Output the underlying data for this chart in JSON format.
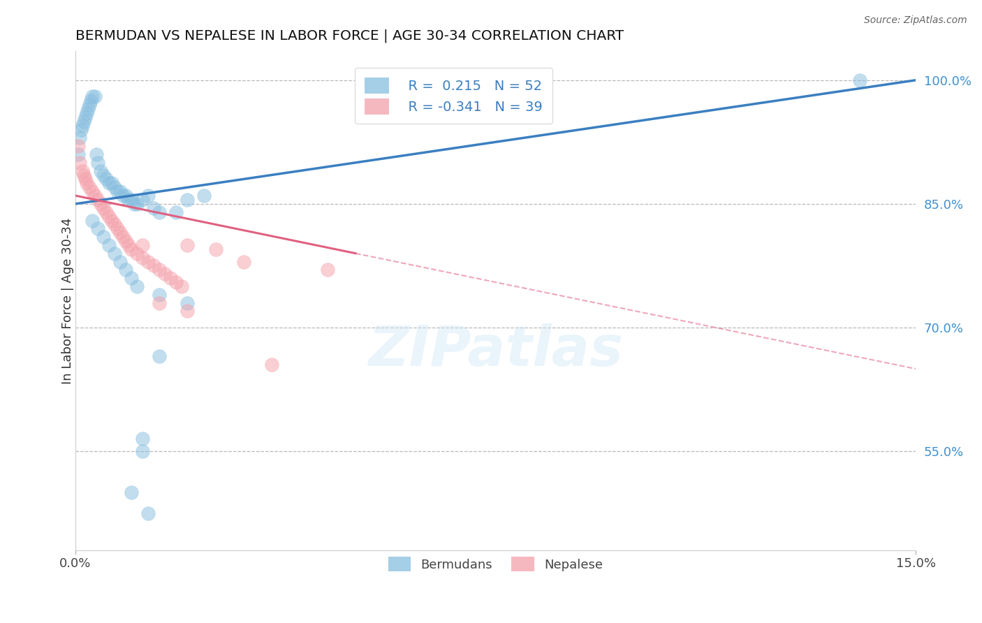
{
  "title": "BERMUDAN VS NEPALESE IN LABOR FORCE | AGE 30-34 CORRELATION CHART",
  "source": "Source: ZipAtlas.com",
  "ylabel": "In Labor Force | Age 30-34",
  "xlim": [
    0.0,
    15.0
  ],
  "ylim": [
    43.0,
    103.5
  ],
  "legend_blue_r": "R =  0.215",
  "legend_blue_n": "N = 52",
  "legend_pink_r": "R = -0.341",
  "legend_pink_n": "N = 39",
  "blue_color": "#87BEDF",
  "pink_color": "#F4A0AA",
  "trend_blue_color": "#3A7FC1",
  "trend_pink_color": "#E06080",
  "watermark": "ZIPatlas",
  "legend_label_blue": "Bermudans",
  "legend_label_pink": "Nepalese",
  "ytick_vals": [
    55.0,
    70.0,
    85.0,
    100.0
  ],
  "ytick_labels": [
    "55.0%",
    "70.0%",
    "85.0%",
    "100.0%"
  ],
  "hgrid_vals": [
    55.0,
    70.0,
    85.0,
    100.0
  ],
  "blue_x": [
    0.05,
    0.08,
    0.1,
    0.12,
    0.15,
    0.18,
    0.2,
    0.22,
    0.25,
    0.28,
    0.3,
    0.35,
    0.38,
    0.4,
    0.45,
    0.5,
    0.55,
    0.6,
    0.65,
    0.7,
    0.75,
    0.8,
    0.85,
    0.9,
    0.95,
    1.0,
    1.05,
    1.1,
    1.2,
    1.3,
    1.4,
    1.5,
    1.8,
    2.0,
    2.3,
    0.3,
    0.4,
    0.5,
    0.6,
    0.7,
    0.8,
    0.9,
    1.0,
    1.1,
    1.2,
    1.5,
    2.0,
    1.0,
    1.2,
    1.3,
    1.5,
    14.0
  ],
  "blue_y": [
    91.0,
    93.0,
    94.0,
    94.5,
    95.0,
    95.5,
    96.0,
    96.5,
    97.0,
    97.5,
    98.0,
    98.0,
    91.0,
    90.0,
    89.0,
    88.5,
    88.0,
    87.5,
    87.5,
    87.0,
    86.5,
    86.5,
    86.0,
    86.0,
    85.5,
    85.5,
    85.0,
    85.0,
    85.5,
    86.0,
    84.5,
    84.0,
    84.0,
    85.5,
    86.0,
    83.0,
    82.0,
    81.0,
    80.0,
    79.0,
    78.0,
    77.0,
    76.0,
    75.0,
    56.5,
    66.5,
    73.0,
    50.0,
    55.0,
    47.5,
    74.0,
    100.0
  ],
  "pink_x": [
    0.05,
    0.08,
    0.12,
    0.15,
    0.18,
    0.2,
    0.25,
    0.3,
    0.35,
    0.4,
    0.45,
    0.5,
    0.55,
    0.6,
    0.65,
    0.7,
    0.75,
    0.8,
    0.85,
    0.9,
    0.95,
    1.0,
    1.1,
    1.2,
    1.3,
    1.4,
    1.5,
    1.6,
    1.7,
    1.8,
    1.9,
    2.0,
    2.5,
    3.0,
    4.5,
    1.5,
    2.0,
    3.5,
    1.2
  ],
  "pink_y": [
    92.0,
    90.0,
    89.0,
    88.5,
    88.0,
    87.5,
    87.0,
    86.5,
    86.0,
    85.5,
    85.0,
    84.5,
    84.0,
    83.5,
    83.0,
    82.5,
    82.0,
    81.5,
    81.0,
    80.5,
    80.0,
    79.5,
    79.0,
    78.5,
    78.0,
    77.5,
    77.0,
    76.5,
    76.0,
    75.5,
    75.0,
    80.0,
    79.5,
    78.0,
    77.0,
    73.0,
    72.0,
    65.5,
    80.0
  ]
}
